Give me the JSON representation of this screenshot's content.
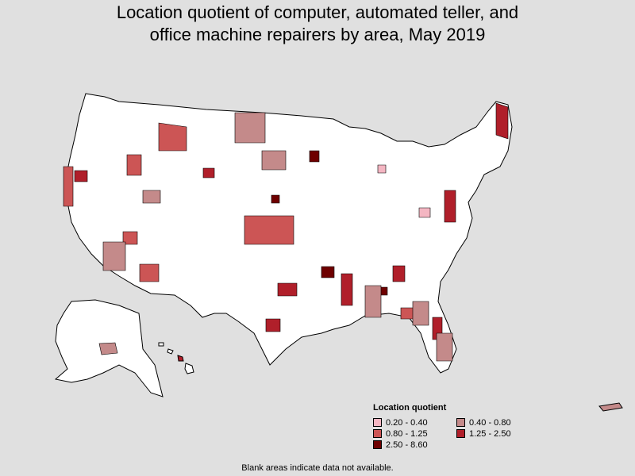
{
  "title": {
    "line1": "Location quotient of computer, automated teller, and",
    "line2": "office machine repairers by area, May 2019"
  },
  "legend": {
    "title": "Location quotient",
    "items": [
      {
        "label": "0.20 - 0.40",
        "color": "#f4b6c2"
      },
      {
        "label": "0.40 - 0.80",
        "color": "#c48a8a"
      },
      {
        "label": "0.80 - 1.25",
        "color": "#cc5555"
      },
      {
        "label": "1.25 - 2.50",
        "color": "#b01f2a"
      },
      {
        "label": "2.50 - 8.60",
        "color": "#6e0000"
      }
    ]
  },
  "footnote": "Blank areas indicate data not available.",
  "colors": {
    "background": "#e0e0e0",
    "no_data": "#ffffff",
    "border": "#000000"
  }
}
